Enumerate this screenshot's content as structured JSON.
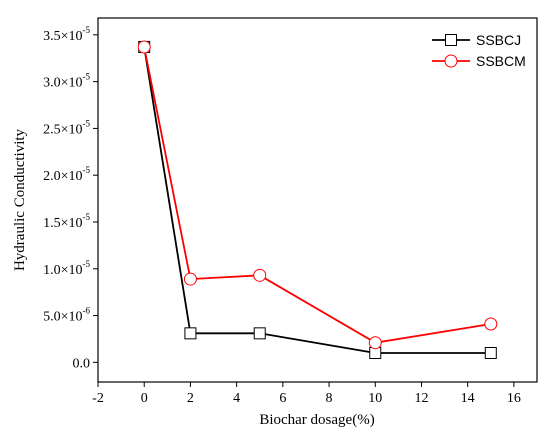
{
  "chart_data": {
    "type": "line",
    "xlabel": "Biochar dosage(%)",
    "ylabel": "Hydraulic Conductivity",
    "xlim": [
      -2,
      17
    ],
    "ylim": [
      -2.1e-06,
      3.68e-05
    ],
    "x_ticks": [
      -2,
      0,
      2,
      4,
      6,
      8,
      10,
      12,
      14,
      16
    ],
    "x_tick_labels": [
      "-2",
      "0",
      "2",
      "4",
      "6",
      "8",
      "10",
      "12",
      "14",
      "16"
    ],
    "y_ticks": [
      0,
      5e-06,
      1e-05,
      1.5e-05,
      2e-05,
      2.5e-05,
      3e-05,
      3.5e-05
    ],
    "y_tick_labels": [
      {
        "mantissa": "0.0",
        "exponent": ""
      },
      {
        "mantissa": "5.0×10",
        "exponent": "-6"
      },
      {
        "mantissa": "1.0×10",
        "exponent": "-5"
      },
      {
        "mantissa": "1.5×10",
        "exponent": "-5"
      },
      {
        "mantissa": "2.0×10",
        "exponent": "-5"
      },
      {
        "mantissa": "2.5×10",
        "exponent": "-5"
      },
      {
        "mantissa": "3.0×10",
        "exponent": "-5"
      },
      {
        "mantissa": "3.5×10",
        "exponent": "-5"
      }
    ],
    "grid": false,
    "legend_position": "top-right",
    "series": [
      {
        "name": "SSBCJ",
        "color": "#000000",
        "marker": "square",
        "x": [
          0,
          2,
          5,
          10,
          15
        ],
        "y": [
          3.37e-05,
          3.1e-06,
          3.1e-06,
          1e-06,
          1e-06
        ]
      },
      {
        "name": "SSBCM",
        "color": "#ff0000",
        "marker": "circle",
        "x": [
          0,
          2,
          5,
          10,
          15
        ],
        "y": [
          3.37e-05,
          8.9e-06,
          9.3e-06,
          2.1e-06,
          4.1e-06
        ]
      }
    ]
  }
}
